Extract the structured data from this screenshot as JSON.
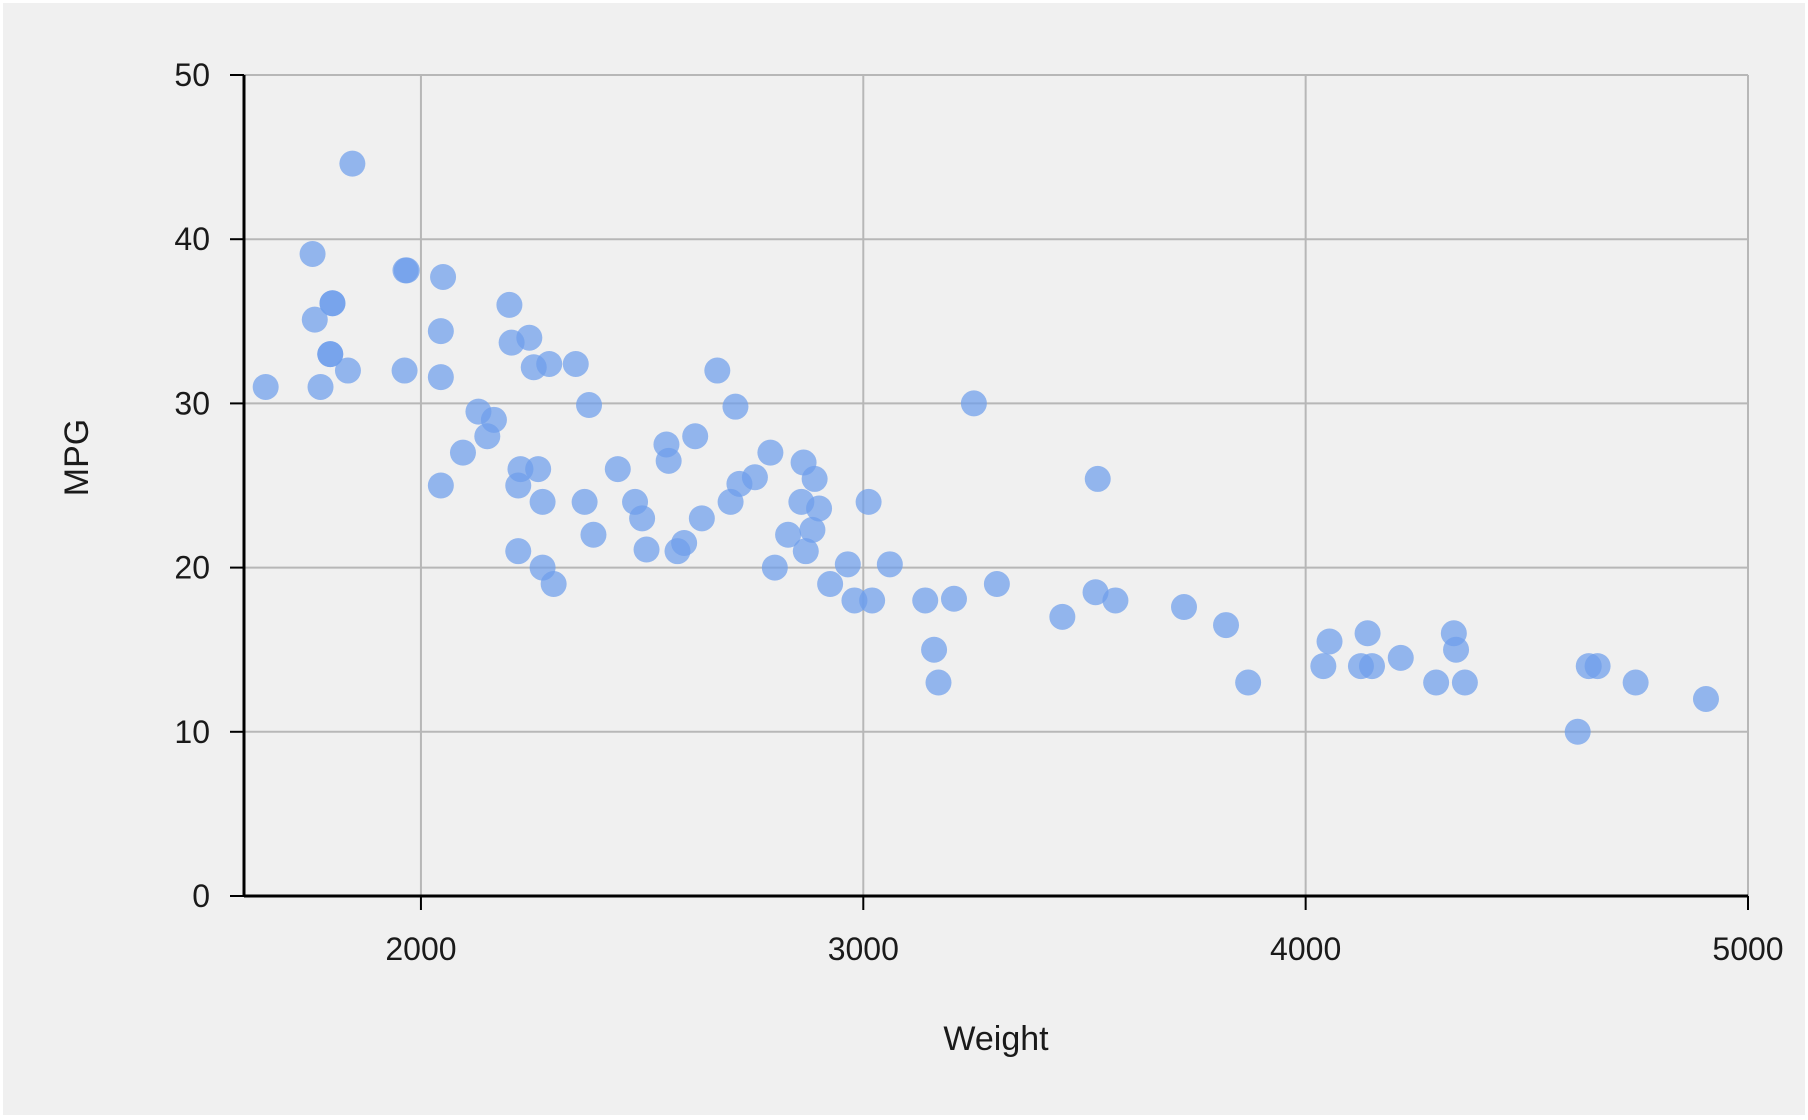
{
  "chart_data": {
    "type": "scatter",
    "title": "",
    "xlabel": "Weight",
    "ylabel": "MPG",
    "xlim": [
      1600,
      5000
    ],
    "ylim": [
      0,
      50
    ],
    "xticks": [
      2000,
      3000,
      4000,
      5000
    ],
    "yticks": [
      0,
      10,
      20,
      30,
      40,
      50
    ],
    "grid": true,
    "legend": "none",
    "colors": {
      "background": "#f0f0f0",
      "point": "#6d9eeb",
      "grid": "#b7b7b7",
      "axis": "#000000",
      "text": "#1a1a1a"
    },
    "series": [
      {
        "points": [
          [
            1649,
            31
          ],
          [
            1755,
            39.1
          ],
          [
            1760,
            35.1
          ],
          [
            1773,
            31
          ],
          [
            1795,
            33
          ],
          [
            1795,
            33
          ],
          [
            1800,
            36.1
          ],
          [
            1800,
            36.1
          ],
          [
            1835,
            32
          ],
          [
            1845,
            44.6
          ],
          [
            1963,
            32
          ],
          [
            1965,
            38.1
          ],
          [
            1968,
            38.1
          ],
          [
            2045,
            34.4
          ],
          [
            2045,
            31.6
          ],
          [
            2045,
            25
          ],
          [
            2050,
            37.7
          ],
          [
            2095,
            27
          ],
          [
            2130,
            29.5
          ],
          [
            2150,
            28
          ],
          [
            2165,
            29
          ],
          [
            2200,
            36
          ],
          [
            2205,
            33.7
          ],
          [
            2220,
            21
          ],
          [
            2220,
            25
          ],
          [
            2225,
            26
          ],
          [
            2245,
            34
          ],
          [
            2255,
            32.2
          ],
          [
            2265,
            26
          ],
          [
            2275,
            24
          ],
          [
            2275,
            20
          ],
          [
            2290,
            32.4
          ],
          [
            2300,
            19
          ],
          [
            2350,
            32.4
          ],
          [
            2370,
            24
          ],
          [
            2380,
            29.9
          ],
          [
            2390,
            22
          ],
          [
            2445,
            26
          ],
          [
            2484,
            24
          ],
          [
            2500,
            23
          ],
          [
            2510,
            21.1
          ],
          [
            2555,
            27.5
          ],
          [
            2560,
            26.5
          ],
          [
            2580,
            21
          ],
          [
            2595,
            21.5
          ],
          [
            2620,
            28
          ],
          [
            2635,
            23
          ],
          [
            2670,
            32
          ],
          [
            2700,
            24
          ],
          [
            2711,
            29.8
          ],
          [
            2720,
            25.1
          ],
          [
            2755,
            25.5
          ],
          [
            2790,
            27
          ],
          [
            2800,
            20
          ],
          [
            2830,
            22
          ],
          [
            2860,
            24
          ],
          [
            2865,
            26.4
          ],
          [
            2870,
            21
          ],
          [
            2885,
            22.3
          ],
          [
            2890,
            25.4
          ],
          [
            2900,
            23.6
          ],
          [
            2925,
            19
          ],
          [
            2965,
            20.2
          ],
          [
            2980,
            18
          ],
          [
            3012,
            24
          ],
          [
            3020,
            18
          ],
          [
            3060,
            20.2
          ],
          [
            3140,
            18
          ],
          [
            3160,
            15
          ],
          [
            3170,
            13
          ],
          [
            3205,
            18.1
          ],
          [
            3250,
            30
          ],
          [
            3302,
            19
          ],
          [
            3450,
            17
          ],
          [
            3525,
            18.5
          ],
          [
            3530,
            25.4
          ],
          [
            3570,
            18
          ],
          [
            3725,
            17.6
          ],
          [
            3820,
            16.5
          ],
          [
            3870,
            13
          ],
          [
            4040,
            14
          ],
          [
            4054,
            15.5
          ],
          [
            4125,
            14
          ],
          [
            4140,
            16
          ],
          [
            4150,
            14
          ],
          [
            4215,
            14.5
          ],
          [
            4295,
            13
          ],
          [
            4335,
            16
          ],
          [
            4340,
            15
          ],
          [
            4360,
            13
          ],
          [
            4615,
            10
          ],
          [
            4640,
            14
          ],
          [
            4660,
            14
          ],
          [
            4746,
            13
          ],
          [
            4905,
            12
          ]
        ]
      }
    ]
  }
}
